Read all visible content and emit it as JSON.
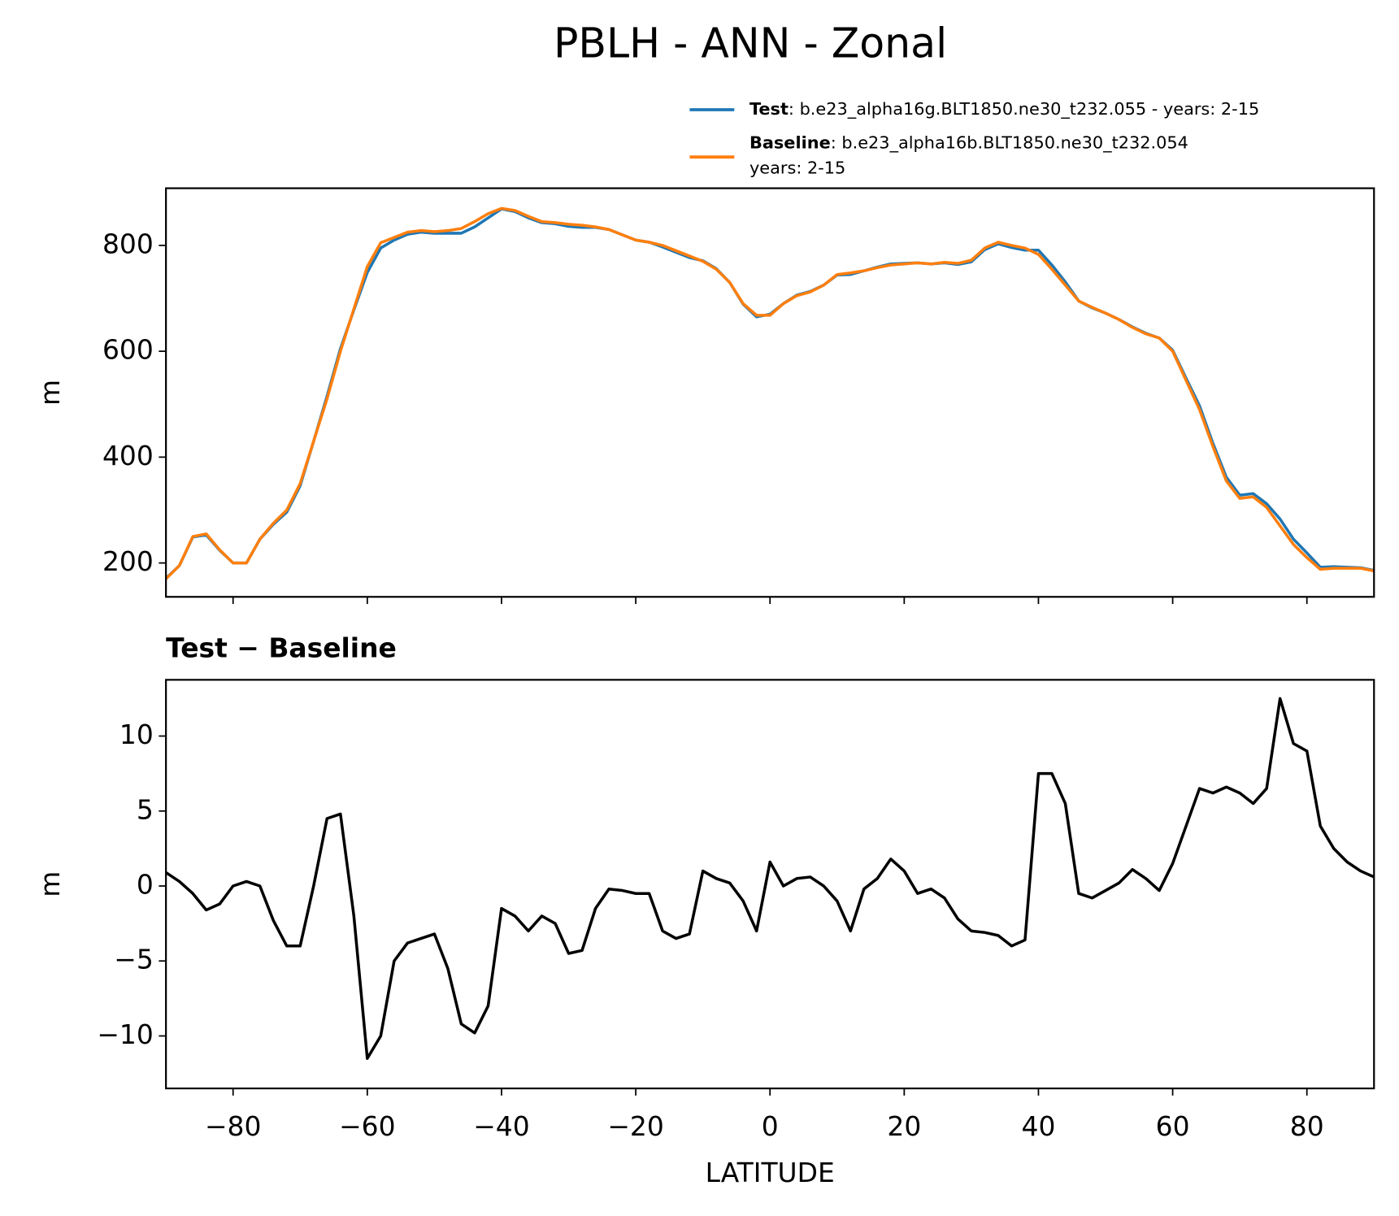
{
  "chart_data": [
    {
      "type": "line",
      "title": "PBLH - ANN - Zonal",
      "ylabel": "m",
      "x": [
        -90,
        -88,
        -86,
        -84,
        -82,
        -80,
        -78,
        -76,
        -74,
        -72,
        -70,
        -68,
        -66,
        -64,
        -62,
        -60,
        -58,
        -56,
        -54,
        -52,
        -50,
        -48,
        -46,
        -44,
        -42,
        -40,
        -38,
        -36,
        -34,
        -32,
        -30,
        -28,
        -26,
        -24,
        -22,
        -20,
        -18,
        -16,
        -14,
        -12,
        -10,
        -8,
        -6,
        -4,
        -2,
        0,
        2,
        4,
        6,
        8,
        10,
        12,
        14,
        16,
        18,
        20,
        22,
        24,
        26,
        28,
        30,
        32,
        34,
        36,
        38,
        40,
        42,
        44,
        46,
        48,
        50,
        52,
        54,
        56,
        58,
        60,
        62,
        64,
        66,
        68,
        70,
        72,
        74,
        76,
        78,
        80,
        82,
        84,
        86,
        88,
        90
      ],
      "series": [
        {
          "name": "Test",
          "description": [
            ": b.e23_alpha16g.BLT1850.ne30_t232.055 - years: 2-15"
          ],
          "color": "#1f77b4",
          "values": [
            171,
            195,
            249,
            253,
            224,
            200,
            200,
            245,
            273,
            296,
            346,
            430,
            515,
            605,
            678,
            749,
            795,
            810,
            821,
            825,
            823,
            823,
            823,
            835,
            852,
            869,
            864,
            852,
            843,
            841,
            836,
            834,
            834,
            830,
            820,
            810,
            806,
            797,
            787,
            777,
            771,
            756,
            730,
            689,
            665,
            670,
            690,
            706,
            713,
            725,
            744,
            745,
            752,
            759,
            765,
            766,
            767,
            765,
            767,
            764,
            769,
            792,
            803,
            796,
            791,
            791,
            763,
            731,
            695,
            682,
            672,
            660,
            646,
            634,
            625,
            602,
            549,
            497,
            426,
            362,
            328,
            331,
            312,
            283,
            245,
            219,
            192,
            193,
            192,
            191,
            186
          ]
        },
        {
          "name": "Baseline",
          "description": [
            ": b.e23_alpha16b.BLT1850.ne30_t232.054",
            "years: 2-15"
          ],
          "color": "#ff7f0e",
          "values": [
            170,
            195,
            250,
            255,
            225,
            200,
            200,
            245,
            275,
            300,
            350,
            430,
            510,
            600,
            680,
            760,
            805,
            815,
            825,
            828,
            826,
            828,
            832,
            845,
            860,
            870,
            866,
            855,
            845,
            843,
            840,
            838,
            835,
            830,
            820,
            810,
            806,
            800,
            790,
            780,
            770,
            755,
            730,
            690,
            668,
            668,
            690,
            705,
            712,
            725,
            745,
            748,
            752,
            758,
            763,
            765,
            767,
            765,
            768,
            766,
            772,
            795,
            806,
            800,
            795,
            783,
            755,
            725,
            695,
            683,
            672,
            660,
            645,
            633,
            625,
            600,
            545,
            490,
            420,
            355,
            322,
            325,
            305,
            270,
            235,
            210,
            188,
            190,
            190,
            190,
            185
          ]
        }
      ],
      "xlim": [
        -90,
        90
      ],
      "xticks": [
        -80,
        -60,
        -40,
        -20,
        0,
        20,
        40,
        60,
        80
      ],
      "ylim": [
        136,
        908
      ],
      "yticks": [
        200,
        400,
        600,
        800
      ]
    },
    {
      "type": "line",
      "title": "Test − Baseline",
      "xlabel": "LATITUDE",
      "ylabel": "m",
      "x": [
        -90,
        -88,
        -86,
        -84,
        -82,
        -80,
        -78,
        -76,
        -74,
        -72,
        -70,
        -68,
        -66,
        -64,
        -62,
        -60,
        -58,
        -56,
        -54,
        -52,
        -50,
        -48,
        -46,
        -44,
        -42,
        -40,
        -38,
        -36,
        -34,
        -32,
        -30,
        -28,
        -26,
        -24,
        -22,
        -20,
        -18,
        -16,
        -14,
        -12,
        -10,
        -8,
        -6,
        -4,
        -2,
        0,
        2,
        4,
        6,
        8,
        10,
        12,
        14,
        16,
        18,
        20,
        22,
        24,
        26,
        28,
        30,
        32,
        34,
        36,
        38,
        40,
        42,
        44,
        46,
        48,
        50,
        52,
        54,
        56,
        58,
        60,
        62,
        64,
        66,
        68,
        70,
        72,
        74,
        76,
        78,
        80,
        82,
        84,
        86,
        88,
        90
      ],
      "series": [
        {
          "color": "#000000",
          "values": [
            0.9,
            0.3,
            -0.5,
            -1.6,
            -1.2,
            0.0,
            0.3,
            0.0,
            -2.3,
            -4.0,
            -4.0,
            0.0,
            4.5,
            4.8,
            -2.0,
            -11.5,
            -10,
            -5,
            -3.8,
            -3.5,
            -3.2,
            -5.5,
            -9.2,
            -9.8,
            -8,
            -1.5,
            -2,
            -3,
            -2,
            -2.5,
            -4.5,
            -4.3,
            -1.5,
            -0.2,
            -0.3,
            -0.5,
            -0.5,
            -3,
            -3.5,
            -3.2,
            1.0,
            0.5,
            0.2,
            -1.0,
            -3.0,
            1.6,
            0.0,
            0.5,
            0.6,
            0,
            -1.0,
            -3.0,
            -0.2,
            0.5,
            1.8,
            1.0,
            -0.5,
            -0.2,
            -0.8,
            -2.2,
            -3.0,
            -3.1,
            -3.3,
            -4.0,
            -3.6,
            7.5,
            7.5,
            5.5,
            -0.5,
            -0.8,
            -0.3,
            0.2,
            1.1,
            0.5,
            -0.3,
            1.5,
            4.0,
            6.5,
            6.2,
            6.6,
            6.2,
            5.5,
            6.5,
            12.5,
            9.5,
            9.0,
            4.0,
            2.5,
            1.6,
            1.0,
            0.6
          ]
        }
      ],
      "xlim": [
        -90,
        90
      ],
      "xticks": [
        {
          "value": -80,
          "label": "−80"
        },
        {
          "value": -60,
          "label": "−60"
        },
        {
          "value": -40,
          "label": "−40"
        },
        {
          "value": -20,
          "label": "−20"
        },
        0,
        20,
        40,
        60,
        80
      ],
      "ylim": [
        -13.5,
        13.75
      ],
      "yticks": [
        {
          "value": -10,
          "label": "−10"
        },
        {
          "value": -5,
          "label": "−5"
        },
        0,
        5,
        10
      ]
    }
  ]
}
